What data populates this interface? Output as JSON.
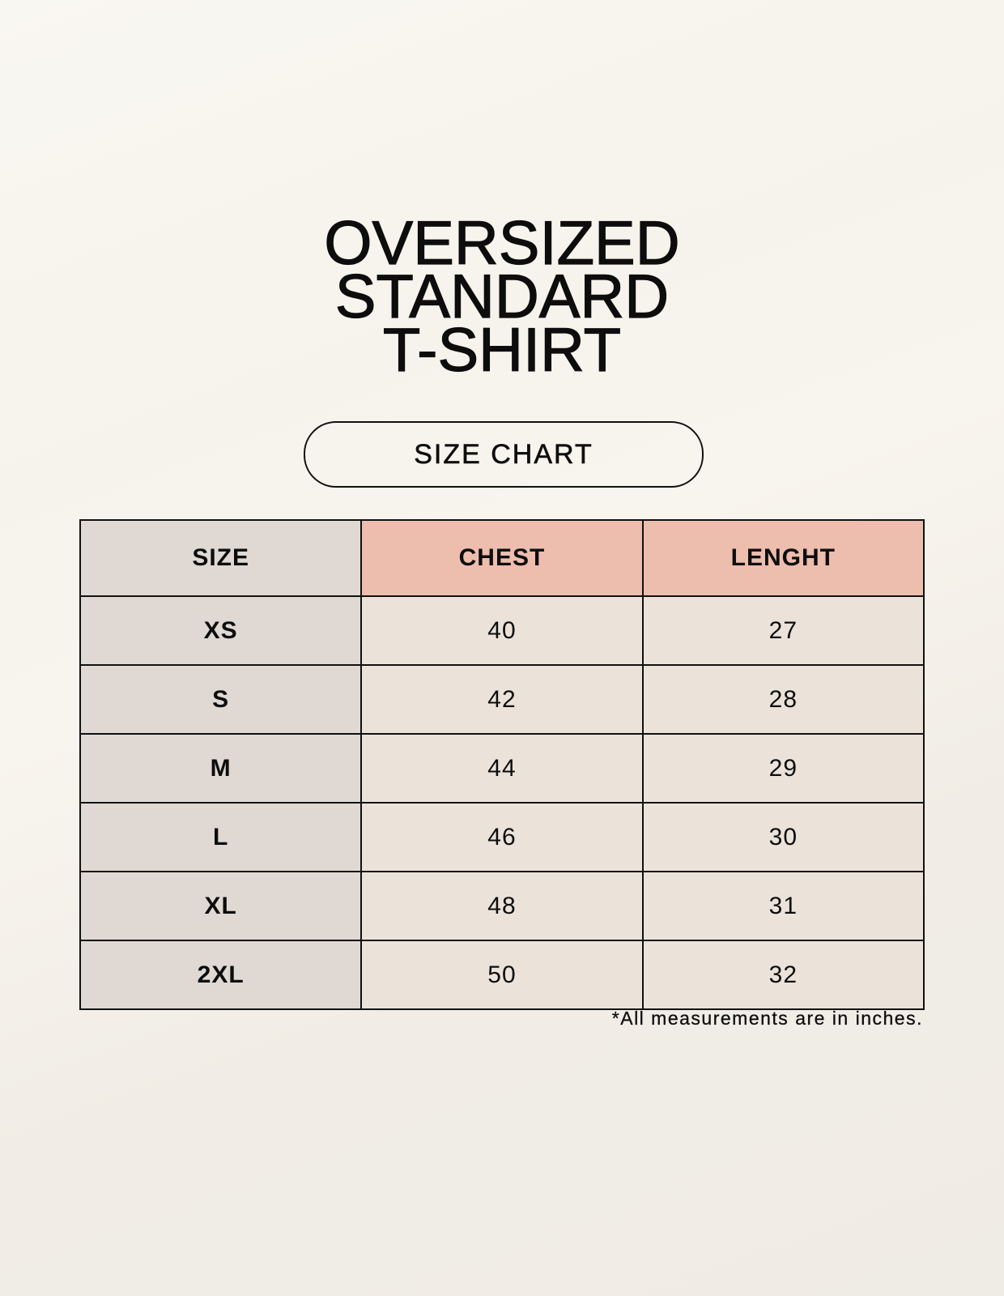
{
  "title_lines": [
    "OVERSIZED",
    "STANDARD",
    "T-SHIRT"
  ],
  "badge": "SIZE CHART",
  "table": {
    "headers": [
      "SIZE",
      "CHEST",
      "LENGHT"
    ],
    "rows": [
      [
        "XS",
        "40",
        "27"
      ],
      [
        "S",
        "42",
        "28"
      ],
      [
        "M",
        "44",
        "29"
      ],
      [
        "L",
        "46",
        "30"
      ],
      [
        "XL",
        "48",
        "31"
      ],
      [
        "2XL",
        "50",
        "32"
      ]
    ]
  },
  "footnote": "*All measurements are in inches.",
  "colors": {
    "size_column": "#e0d9d3",
    "header_accent": "#edbdae",
    "value_cells": "#ebe3d9"
  }
}
